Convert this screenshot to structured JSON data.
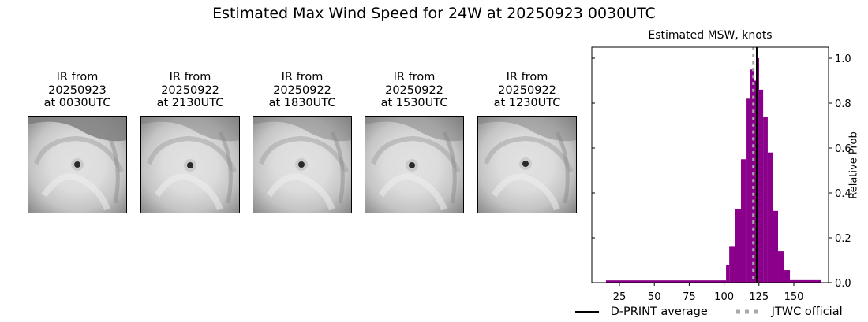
{
  "suptitle": "Estimated Max Wind Speed for 24W at 20250923 0030UTC",
  "ir_panels": [
    {
      "line1": "IR from",
      "line2": "20250923",
      "line3": "at 0030UTC"
    },
    {
      "line1": "IR from",
      "line2": "20250922",
      "line3": "at 2130UTC"
    },
    {
      "line1": "IR from",
      "line2": "20250922",
      "line3": "at 1830UTC"
    },
    {
      "line1": "IR from",
      "line2": "20250922",
      "line3": "at 1530UTC"
    },
    {
      "line1": "IR from",
      "line2": "20250922",
      "line3": "at 1230UTC"
    }
  ],
  "colors": {
    "bar": "#8b008b",
    "average_line": "#000000",
    "official_line": "#a9a9a9"
  },
  "chart_data": {
    "type": "bar",
    "title": "Estimated MSW, knots",
    "xlabel": "",
    "ylabel": "Relative Prob",
    "xlim": [
      5,
      175
    ],
    "ylim": [
      0,
      1.05
    ],
    "xticks": [
      25,
      50,
      75,
      100,
      125,
      150
    ],
    "yticks": [
      0.0,
      0.2,
      0.4,
      0.6,
      0.8,
      1.0
    ],
    "ytick_labels": [
      "0.0",
      "0.2",
      "0.4",
      "0.6",
      "0.8",
      "1.0"
    ],
    "y_axis_side": "right",
    "grid": false,
    "bins": [
      {
        "x0": 15.4,
        "x1": 101.4,
        "value": 0.01
      },
      {
        "x0": 101.4,
        "x1": 103.7,
        "value": 0.08
      },
      {
        "x0": 103.7,
        "x1": 108.1,
        "value": 0.16
      },
      {
        "x0": 108.1,
        "x1": 112.1,
        "value": 0.33
      },
      {
        "x0": 112.1,
        "x1": 116.1,
        "value": 0.55
      },
      {
        "x0": 116.1,
        "x1": 118.9,
        "value": 0.82
      },
      {
        "x0": 118.9,
        "x1": 121.2,
        "value": 0.95
      },
      {
        "x0": 121.2,
        "x1": 122.9,
        "value": 0.9
      },
      {
        "x0": 122.9,
        "x1": 125.1,
        "value": 1.0
      },
      {
        "x0": 125.1,
        "x1": 128.0,
        "value": 0.86
      },
      {
        "x0": 128.0,
        "x1": 131.3,
        "value": 0.74
      },
      {
        "x0": 131.3,
        "x1": 135.3,
        "value": 0.58
      },
      {
        "x0": 135.3,
        "x1": 138.7,
        "value": 0.32
      },
      {
        "x0": 138.7,
        "x1": 143.2,
        "value": 0.14
      },
      {
        "x0": 143.2,
        "x1": 147.2,
        "value": 0.056
      },
      {
        "x0": 147.2,
        "x1": 169.8,
        "value": 0.011
      }
    ],
    "vlines": [
      {
        "name": "D-PRINT average",
        "x": 123.4,
        "style": "solid",
        "color": "#000000"
      },
      {
        "name": "JTWC official",
        "x": 121,
        "style": "dotted",
        "color": "#a9a9a9"
      }
    ],
    "legend": [
      "D-PRINT average",
      "JTWC official"
    ],
    "legend_position": "below"
  }
}
